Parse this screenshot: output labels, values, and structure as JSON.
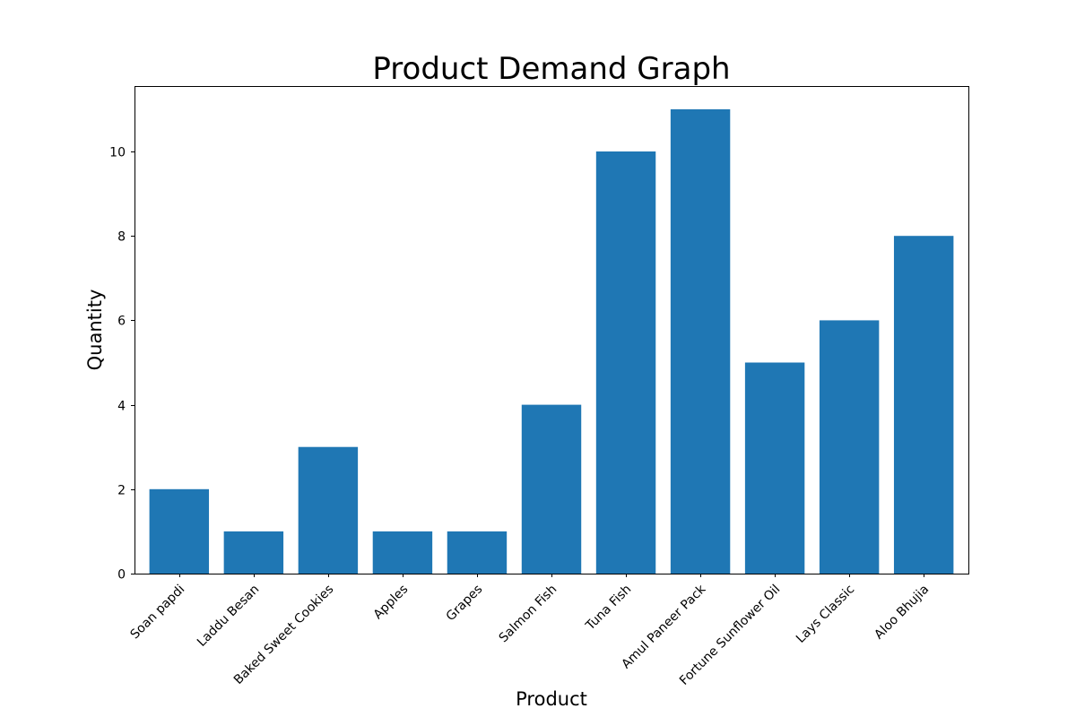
{
  "chart_data": {
    "type": "bar",
    "title": "Product Demand Graph",
    "xlabel": "Product",
    "ylabel": "Quantity",
    "categories": [
      "Soan papdi",
      "Laddu Besan",
      "Baked Sweet Cookies",
      "Apples",
      "Grapes",
      "Salmon Fish",
      "Tuna Fish",
      "Amul Paneer Pack",
      "Fortune Sunflower Oil",
      "Lays Classic",
      "Aloo Bhujia"
    ],
    "values": [
      2,
      1,
      3,
      1,
      1,
      4,
      10,
      11,
      5,
      6,
      8
    ],
    "ylim": [
      0,
      11.55
    ],
    "yticks": [
      0,
      2,
      4,
      6,
      8,
      10
    ],
    "grid": false,
    "legend": "none",
    "bar_color": "#1f77b4"
  }
}
